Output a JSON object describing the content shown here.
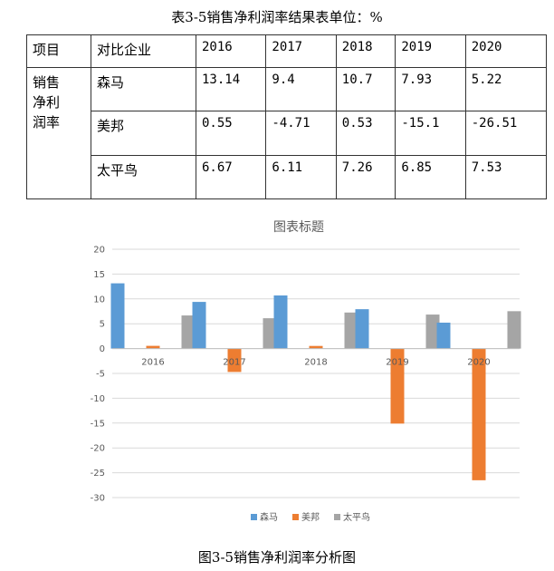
{
  "table": {
    "title": "表3-5销售净利润率结果表单位：%",
    "header": [
      "项目",
      "对比企业",
      "2016",
      "2017",
      "2018",
      "2019",
      "2020"
    ],
    "group_label": [
      "销售",
      "净利",
      "润率"
    ],
    "rows": [
      {
        "company": "森马",
        "values": [
          "13.14",
          "9.4",
          "10.7",
          "7.93",
          "5.22"
        ]
      },
      {
        "company": "美邦",
        "values": [
          "0.55",
          "-4.71",
          "0.53",
          "-15.1",
          "-26.51"
        ]
      },
      {
        "company": "太平鸟",
        "values": [
          "6.67",
          "6.11",
          "7.26",
          "6.85",
          "7.53"
        ]
      }
    ]
  },
  "figure_caption": "图3-5销售净利润率分析图",
  "chart_data": {
    "type": "bar",
    "title": "图表标题",
    "categories": [
      "2016",
      "2017",
      "2018",
      "2019",
      "2020"
    ],
    "series": [
      {
        "name": "森马",
        "color": "#5B9BD5",
        "values": [
          13.14,
          9.4,
          10.7,
          7.93,
          5.22
        ]
      },
      {
        "name": "美邦",
        "color": "#ED7D31",
        "values": [
          0.55,
          -4.71,
          0.53,
          -15.1,
          -26.51
        ]
      },
      {
        "name": "太平鸟",
        "color": "#A5A5A5",
        "values": [
          6.67,
          6.11,
          7.26,
          6.85,
          7.53
        ]
      }
    ],
    "ylim": [
      -30,
      20
    ],
    "yticks": [
      20,
      15,
      10,
      5,
      0,
      -5,
      -10,
      -15,
      -20,
      -25,
      -30
    ],
    "grid": true,
    "legend": "bottom"
  }
}
